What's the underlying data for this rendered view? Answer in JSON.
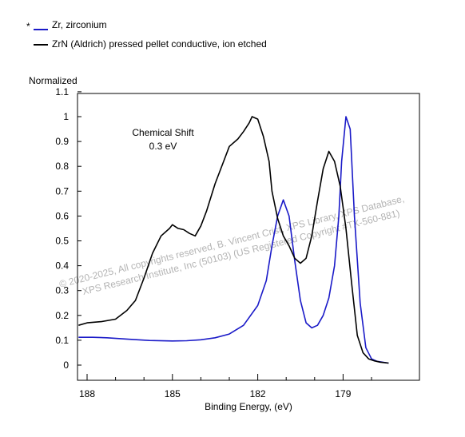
{
  "chart_data": {
    "type": "line",
    "title": "",
    "xlabel": "Binding Energy, (eV)",
    "ylabel": "Normalized",
    "x_ticks": [
      "188",
      "185",
      "182",
      "179"
    ],
    "y_ticks": [
      "1.1",
      "1",
      "0.9",
      "0.8",
      "0.7",
      "0.6",
      "0.5",
      "0.4",
      "0.3",
      "0.2",
      "0.1",
      "0"
    ],
    "xlim": [
      188.3,
      177.4
    ],
    "ylim": [
      -0.05,
      1.1
    ],
    "x_reversed": true,
    "legend_position": "top-left",
    "legend_marker": "*",
    "annotation": [
      "Chemical Shift",
      "0.3 eV"
    ],
    "watermark": [
      "© 2020-2025,  All copyrights reserved,  B. Vincent Crist,  XPS Library,  XPS Database,",
      "XPS Research Institute, Inc (50103)   (US Registered Copyright #TX-560-881)"
    ],
    "series": [
      {
        "name": "Zr, zirconium",
        "color": "#1a1ac8",
        "x": [
          188.3,
          187.8,
          187.3,
          186.5,
          185.8,
          185.0,
          184.5,
          184.0,
          183.5,
          183.0,
          182.5,
          182.0,
          181.7,
          181.5,
          181.3,
          181.1,
          180.9,
          180.7,
          180.5,
          180.3,
          180.1,
          179.9,
          179.7,
          179.5,
          179.3,
          179.15,
          179.05,
          178.9,
          178.75,
          178.6,
          178.4,
          178.2,
          178.0,
          177.8,
          177.4
        ],
        "y": [
          0.112,
          0.112,
          0.11,
          0.104,
          0.099,
          0.097,
          0.098,
          0.102,
          0.11,
          0.125,
          0.16,
          0.24,
          0.34,
          0.48,
          0.6,
          0.665,
          0.6,
          0.42,
          0.26,
          0.17,
          0.15,
          0.16,
          0.2,
          0.27,
          0.4,
          0.6,
          0.82,
          1.0,
          0.95,
          0.6,
          0.25,
          0.07,
          0.025,
          0.015,
          0.008
        ]
      },
      {
        "name": "ZrN (Aldrich) pressed pellet conductive, ion etched",
        "color": "#000000",
        "x": [
          188.3,
          188.0,
          187.5,
          187.0,
          186.6,
          186.3,
          186.0,
          185.7,
          185.4,
          185.1,
          185.0,
          184.8,
          184.6,
          184.4,
          184.2,
          184.0,
          183.8,
          183.5,
          183.2,
          183.0,
          182.7,
          182.5,
          182.3,
          182.2,
          182.0,
          181.8,
          181.6,
          181.5,
          181.3,
          181.1,
          180.9,
          180.7,
          180.5,
          180.3,
          180.1,
          179.9,
          179.7,
          179.5,
          179.3,
          179.1,
          178.9,
          178.7,
          178.5,
          178.3,
          178.1,
          177.9,
          177.7,
          177.4
        ],
        "y": [
          0.16,
          0.17,
          0.175,
          0.185,
          0.22,
          0.26,
          0.35,
          0.45,
          0.52,
          0.55,
          0.565,
          0.55,
          0.545,
          0.53,
          0.52,
          0.56,
          0.62,
          0.73,
          0.82,
          0.88,
          0.91,
          0.94,
          0.975,
          1.0,
          0.99,
          0.92,
          0.82,
          0.7,
          0.59,
          0.52,
          0.48,
          0.43,
          0.41,
          0.43,
          0.52,
          0.66,
          0.79,
          0.86,
          0.82,
          0.72,
          0.55,
          0.33,
          0.12,
          0.05,
          0.025,
          0.017,
          0.012,
          0.008
        ]
      }
    ]
  }
}
